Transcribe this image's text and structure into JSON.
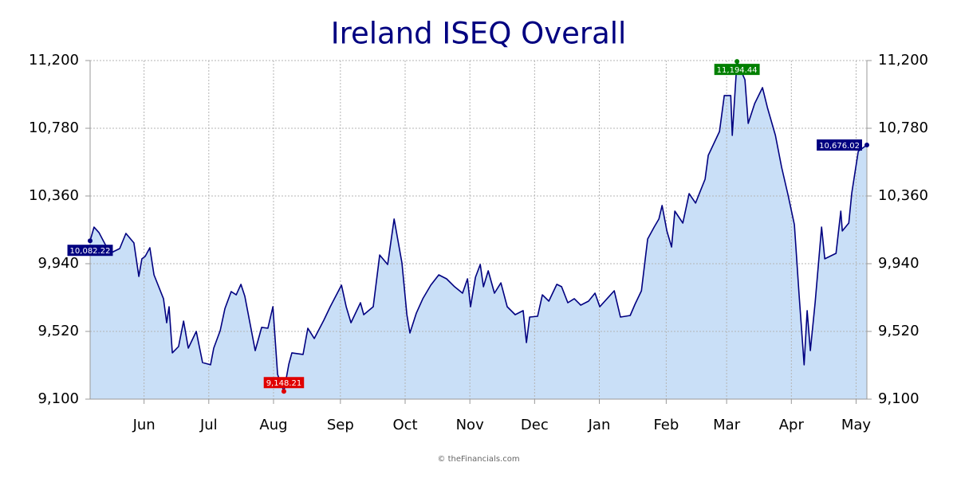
{
  "chart_data": {
    "type": "area",
    "title": "Ireland ISEQ Overall",
    "footer": "© theFinancials.com",
    "color": "#000080",
    "fill": "#c9dff7",
    "grid": true,
    "xlim": [
      0,
      360
    ],
    "xticks": [
      {
        "value": 25,
        "label": "Jun"
      },
      {
        "value": 55,
        "label": "Jul"
      },
      {
        "value": 85,
        "label": "Aug"
      },
      {
        "value": 116,
        "label": "Sep"
      },
      {
        "value": 146,
        "label": "Oct"
      },
      {
        "value": 176,
        "label": "Nov"
      },
      {
        "value": 206,
        "label": "Dec"
      },
      {
        "value": 236,
        "label": "Jan"
      },
      {
        "value": 267,
        "label": "Feb"
      },
      {
        "value": 295,
        "label": "Mar"
      },
      {
        "value": 325,
        "label": "Apr"
      },
      {
        "value": 355,
        "label": "May"
      }
    ],
    "ylim": [
      9100,
      11200
    ],
    "yticks": [
      {
        "value": 9100,
        "label": "9,100"
      },
      {
        "value": 9520,
        "label": "9,520"
      },
      {
        "value": 9940,
        "label": "9,940"
      },
      {
        "value": 10360,
        "label": "10,360"
      },
      {
        "value": 10780,
        "label": "10,780"
      },
      {
        "value": 11200,
        "label": "11,200"
      }
    ],
    "x": [
      0,
      1.8,
      4.1,
      6.3,
      9.2,
      13.7,
      16.6,
      20.3,
      22.6,
      24.0,
      25.5,
      27.7,
      29.6,
      34.0,
      35.5,
      36.6,
      38.1,
      41.0,
      43.3,
      45.5,
      49.2,
      52.1,
      55.8,
      57.3,
      60.3,
      62.5,
      65.4,
      67.7,
      69.9,
      71.7,
      75.1,
      76.5,
      79.5,
      82.4,
      84.7,
      86.9,
      89.8,
      92.1,
      93.5,
      98.7,
      100.9,
      103.9,
      108.3,
      111.3,
      116.5,
      118.7,
      120.9,
      125.3,
      126.8,
      131.2,
      134.2,
      137.9,
      140.9,
      144.5,
      146.8,
      148.2,
      151.2,
      154.2,
      157.9,
      161.6,
      165.2,
      168.9,
      172.6,
      174.9,
      176.3,
      178.6,
      180.8,
      182.3,
      184.5,
      187.4,
      190.4,
      193.3,
      197.0,
      200.7,
      202.2,
      203.7,
      207.4,
      209.6,
      212.6,
      216.3,
      218.5,
      221.4,
      224.4,
      227.4,
      231.0,
      234.0,
      236.2,
      242.9,
      245.8,
      250.3,
      252.5,
      255.5,
      258.4,
      261.4,
      263.6,
      265.1,
      267.3,
      269.5,
      271.0,
      274.7,
      277.6,
      280.6,
      282.8,
      285.0,
      286.5,
      291.7,
      293.9,
      296.9,
      297.6,
      299.8,
      303.5,
      305.0,
      308.0,
      311.6,
      313.9,
      317.6,
      320.5,
      323.5,
      326.4,
      328.6,
      330.9,
      332.3,
      333.8,
      336.0,
      339.0,
      340.5,
      345.7,
      347.9,
      348.6,
      351.6,
      353.0,
      356.0,
      360
    ],
    "values": [
      10082.22,
      10167,
      10133,
      10078,
      10004,
      10034,
      10128,
      10069,
      9861,
      9970,
      9985,
      10039,
      9871,
      9723,
      9574,
      9673,
      9387,
      9426,
      9584,
      9416,
      9520,
      9327,
      9313,
      9416,
      9525,
      9663,
      9767,
      9747,
      9812,
      9738,
      9500,
      9401,
      9545,
      9540,
      9673,
      9253,
      9148.21,
      9318,
      9387,
      9377,
      9540,
      9476,
      9589,
      9673,
      9807,
      9673,
      9574,
      9698,
      9624,
      9673,
      9994,
      9935,
      10217,
      9945,
      9624,
      9510,
      9634,
      9723,
      9807,
      9871,
      9846,
      9797,
      9757,
      9846,
      9673,
      9856,
      9935,
      9797,
      9896,
      9757,
      9821,
      9673,
      9624,
      9649,
      9451,
      9609,
      9614,
      9747,
      9708,
      9812,
      9797,
      9698,
      9723,
      9683,
      9708,
      9757,
      9673,
      9772,
      9609,
      9619,
      9688,
      9772,
      10093,
      10167,
      10217,
      10301,
      10143,
      10044,
      10266,
      10192,
      10375,
      10316,
      10390,
      10464,
      10612,
      10760,
      10983,
      10983,
      10736,
      11194.44,
      11081,
      10810,
      10933,
      11032,
      10908,
      10736,
      10538,
      10365,
      10182,
      9747,
      9313,
      9649,
      9401,
      9698,
      10167,
      9970,
      10004,
      10266,
      10143,
      10192,
      10380,
      10637,
      10676.02
    ],
    "value_labels": [
      "10,082.22",
      null,
      null,
      null,
      null,
      null,
      null,
      null,
      null,
      null,
      null,
      null,
      null,
      null,
      null,
      null,
      null,
      null,
      null,
      null,
      null,
      null,
      null,
      null,
      null,
      null,
      null,
      null,
      null,
      null,
      null,
      null,
      null,
      null,
      null,
      null,
      "9,148.21",
      null,
      null,
      null,
      null,
      null,
      null,
      null,
      null,
      null,
      null,
      null,
      null,
      null,
      null,
      null,
      null,
      null,
      null,
      null,
      null,
      null,
      null,
      null,
      null,
      null,
      null,
      null,
      null,
      null,
      null,
      null,
      null,
      null,
      null,
      null,
      null,
      null,
      null,
      null,
      null,
      null,
      null,
      null,
      null,
      null,
      null,
      null,
      null,
      null,
      null,
      null,
      null,
      null,
      null,
      null,
      null,
      null,
      null,
      null,
      null,
      null,
      null,
      null,
      null,
      null,
      null,
      null,
      null,
      null,
      null,
      null,
      null,
      "11,194.44",
      null,
      null,
      null,
      null,
      null,
      null,
      null,
      null,
      null,
      null,
      null,
      null,
      null,
      null,
      null,
      null,
      null,
      null,
      null,
      null,
      null,
      null,
      "10,676.02"
    ]
  }
}
